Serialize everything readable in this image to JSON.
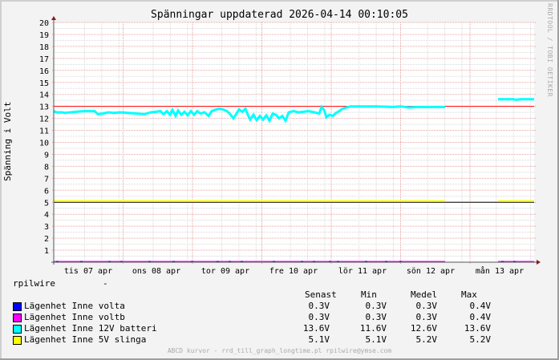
{
  "chart_data": {
    "type": "line",
    "title": "Spänningar uppdaterad 2026-04-14 00:10:05",
    "xlabel": "",
    "ylabel": "Spänning i Volt",
    "ylim": [
      0,
      20
    ],
    "yticks": [
      "1",
      "2",
      "3",
      "4",
      "5",
      "6",
      "7",
      "8",
      "9",
      "10",
      "11",
      "12",
      "13",
      "14",
      "15",
      "16",
      "17",
      "18",
      "19",
      "20"
    ],
    "xticks": [
      "tis 07 apr",
      "ons 08 apr",
      "tor 09 apr",
      "fre 10 apr",
      "lör 11 apr",
      "sön 12 apr",
      "mån 13 apr"
    ],
    "grid": true,
    "hrules": [
      {
        "value": 13,
        "color": "#ff0000"
      },
      {
        "value": 5,
        "color": "#000000"
      }
    ],
    "series": [
      {
        "name": "Lägenhet Inne volta",
        "color": "#0000ff",
        "values_approx": "0.3 (constant)",
        "last": "0.3V",
        "min": "0.3V",
        "avg": "0.3V",
        "max": "0.4V"
      },
      {
        "name": "Lägenhet Inne voltb",
        "color": "#ff00ff",
        "values_approx": "0.3 (constant)",
        "last": "0.3V",
        "min": "0.3V",
        "avg": "0.3V",
        "max": "0.4V"
      },
      {
        "name": "Lägenhet Inne 12V batteri",
        "color": "#00ffff",
        "values_approx": "12.4-12.6 on 07-08 apr, noisy 11.6-12.8 on 09-10 apr, ~13.0 on 11-12 apr, gap, 13.6 on 13 apr",
        "last": "13.6V",
        "min": "11.6V",
        "avg": "12.6V",
        "max": "13.6V"
      },
      {
        "name": "Lägenhet Inne 5V slinga",
        "color": "#ffff00",
        "values_approx": "5.1-5.2 (constant), gap late 12 apr to 13 apr",
        "last": "5.1V",
        "min": "5.1V",
        "avg": "5.2V",
        "max": "5.2V"
      }
    ],
    "legend_position": "bottom"
  },
  "watermark": "RRDTOOL / TOBI OETIKER",
  "legend": {
    "host": "rpilwire",
    "host_value": "-",
    "headers": {
      "last": "Senast",
      "min": "Min",
      "avg": "Medel",
      "max": "Max"
    }
  },
  "footer": "ABCD kurvor - rrd_till_graph_longtime.pl rpilwire@ymse.com"
}
